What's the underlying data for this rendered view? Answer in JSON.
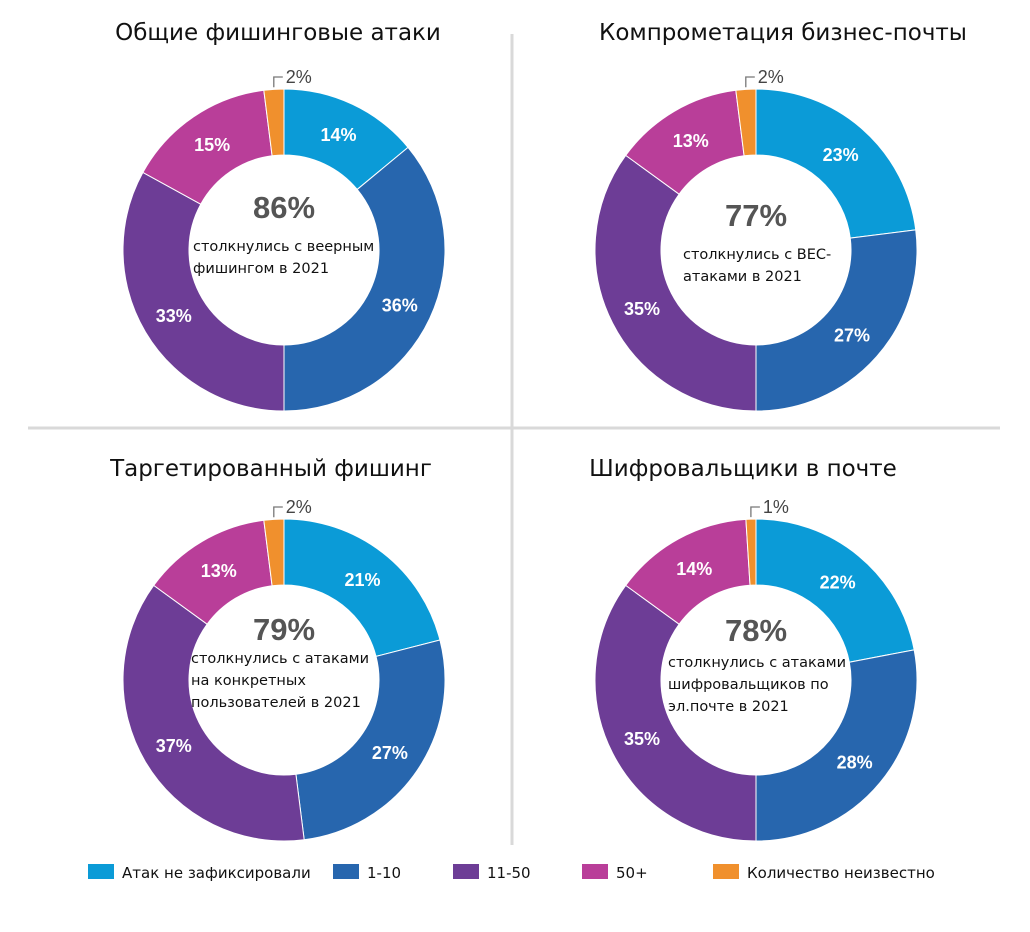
{
  "colors": {
    "none": "#0b9bd7",
    "one_to_ten": "#2766ae",
    "eleven_to_fifty": "#6d3d96",
    "fifty_plus": "#b93e99",
    "unknown": "#f0902d",
    "divider": "#d9d9d9"
  },
  "legend": [
    {
      "key": "none",
      "label": "Атак не зафиксировали"
    },
    {
      "key": "one_to_ten",
      "label": "1-10"
    },
    {
      "key": "eleven_to_fifty",
      "label": "11-50"
    },
    {
      "key": "fifty_plus",
      "label": "50+"
    },
    {
      "key": "unknown",
      "label": "Количество неизвестно"
    }
  ],
  "chart_data": [
    {
      "type": "pie",
      "variant": "donut",
      "title": "Общие фишинговые атаки",
      "center_value": "86%",
      "center_text": [
        "столкнулись с веерным",
        "фишингом в 2021"
      ],
      "slices": [
        {
          "key": "none",
          "value": 14,
          "label": "14%"
        },
        {
          "key": "one_to_ten",
          "value": 36,
          "label": "36%"
        },
        {
          "key": "eleven_to_fifty",
          "value": 33,
          "label": "33%"
        },
        {
          "key": "fifty_plus",
          "value": 15,
          "label": "15%"
        },
        {
          "key": "unknown",
          "value": 2,
          "label": "2%"
        }
      ]
    },
    {
      "type": "pie",
      "variant": "donut",
      "title": "Компрометация бизнес-почты",
      "center_value": "77%",
      "center_text": [
        "столкнулись с BEC-",
        "атаками в 2021"
      ],
      "slices": [
        {
          "key": "none",
          "value": 23,
          "label": "23%"
        },
        {
          "key": "one_to_ten",
          "value": 27,
          "label": "27%"
        },
        {
          "key": "eleven_to_fifty",
          "value": 35,
          "label": "35%"
        },
        {
          "key": "fifty_plus",
          "value": 13,
          "label": "13%"
        },
        {
          "key": "unknown",
          "value": 2,
          "label": "2%"
        }
      ]
    },
    {
      "type": "pie",
      "variant": "donut",
      "title": "Таргетированный фишинг",
      "center_value": "79%",
      "center_text": [
        "столкнулись с атаками",
        "на конкретных",
        "пользователей в 2021"
      ],
      "slices": [
        {
          "key": "none",
          "value": 21,
          "label": "21%"
        },
        {
          "key": "one_to_ten",
          "value": 27,
          "label": "27%"
        },
        {
          "key": "eleven_to_fifty",
          "value": 37,
          "label": "37%"
        },
        {
          "key": "fifty_plus",
          "value": 13,
          "label": "13%"
        },
        {
          "key": "unknown",
          "value": 2,
          "label": "2%"
        }
      ]
    },
    {
      "type": "pie",
      "variant": "donut",
      "title": "Шифровальщики в почте",
      "center_value": "78%",
      "center_text": [
        "столкнулись с атаками",
        "шифровальщиков по",
        "эл.почте в 2021"
      ],
      "slices": [
        {
          "key": "none",
          "value": 22,
          "label": "22%"
        },
        {
          "key": "one_to_ten",
          "value": 28,
          "label": "28%"
        },
        {
          "key": "eleven_to_fifty",
          "value": 35,
          "label": "35%"
        },
        {
          "key": "fifty_plus",
          "value": 14,
          "label": "14%"
        },
        {
          "key": "unknown",
          "value": 1,
          "label": "1%"
        }
      ]
    }
  ]
}
